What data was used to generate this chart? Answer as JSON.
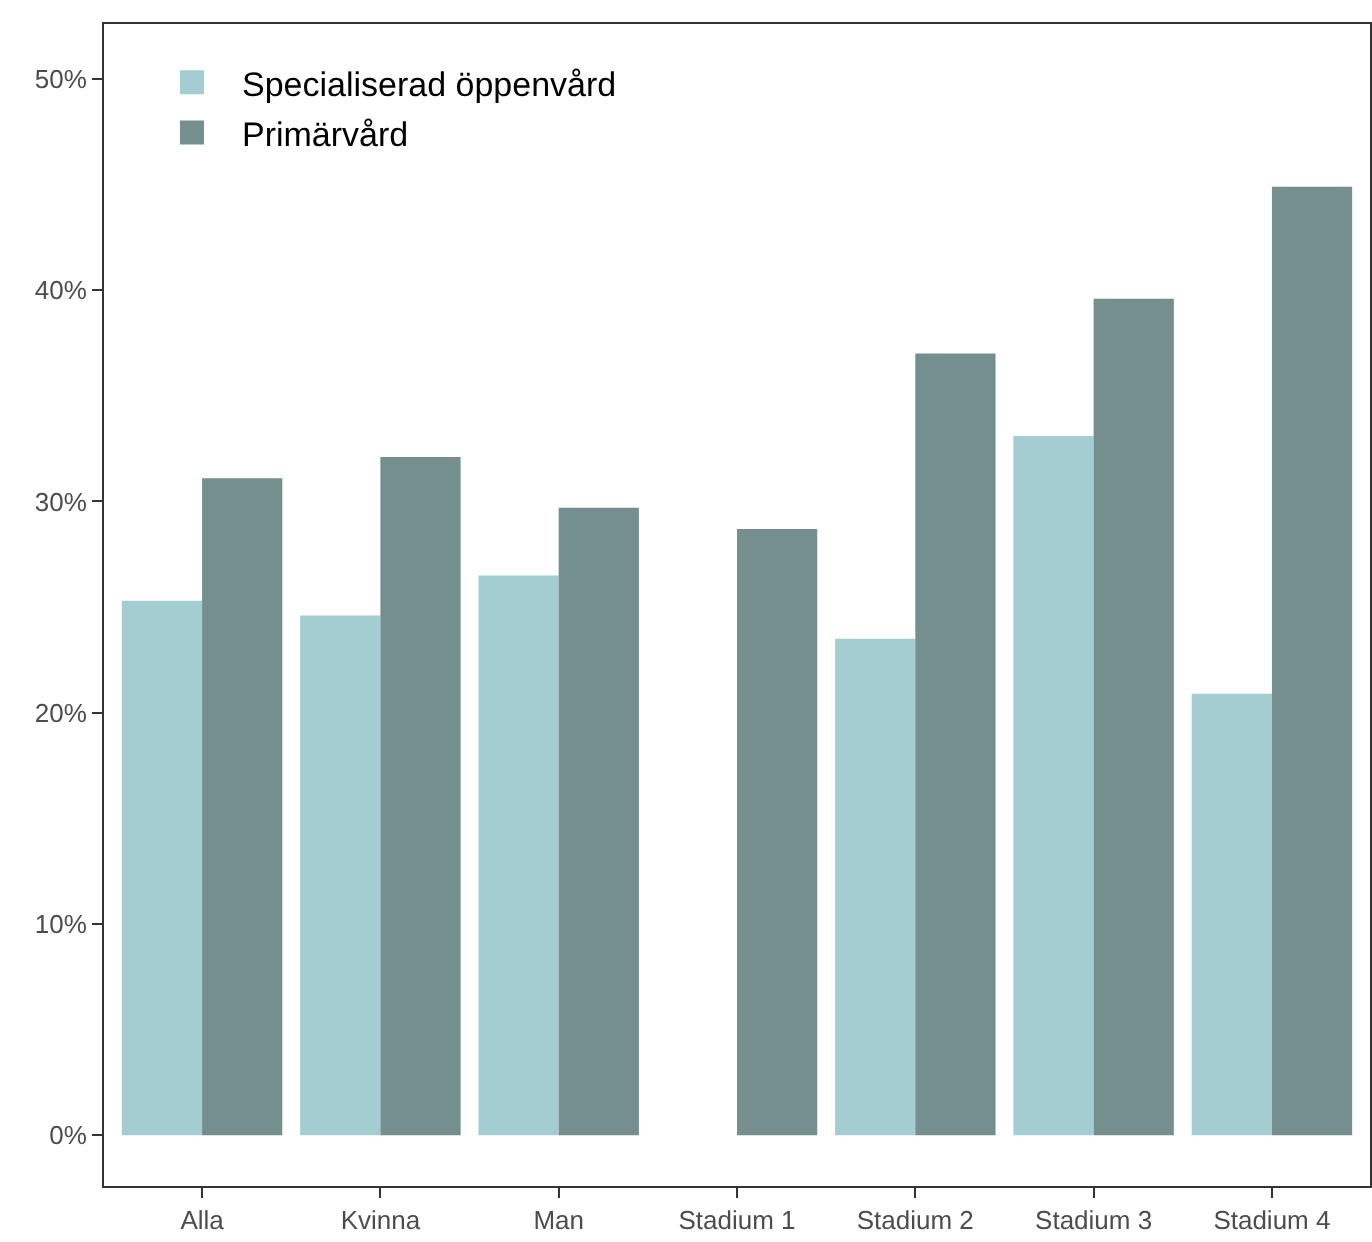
{
  "chart_data": {
    "type": "bar",
    "categories": [
      "Alla",
      "Kvinna",
      "Man",
      "Stadium 1",
      "Stadium 2",
      "Stadium 3",
      "Stadium 4"
    ],
    "series": [
      {
        "name": "Specialiserad öppenvård",
        "color": "#a3cdd1",
        "values": [
          25.3,
          24.6,
          26.5,
          null,
          23.5,
          33.1,
          20.9
        ]
      },
      {
        "name": "Primärvård",
        "color": "#758f8f",
        "values": [
          31.1,
          32.1,
          29.7,
          28.7,
          37.0,
          39.6,
          44.9
        ]
      }
    ],
    "ylim": [
      -2.4,
      52.6
    ],
    "yticks": [
      {
        "value": 0,
        "label": "0%"
      },
      {
        "value": 10,
        "label": "10%"
      },
      {
        "value": 20,
        "label": "20%"
      },
      {
        "value": 30,
        "label": "30%"
      },
      {
        "value": 40,
        "label": "40%"
      },
      {
        "value": 50,
        "label": "50%"
      }
    ],
    "legend": "top left"
  }
}
